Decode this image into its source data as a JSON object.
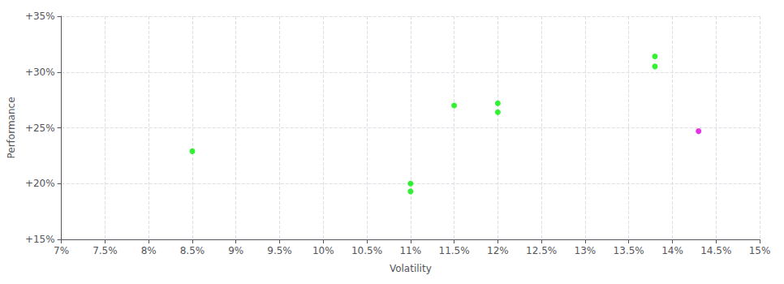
{
  "chart_data": {
    "type": "scatter",
    "xlabel": "Volatility",
    "ylabel": "Performance",
    "xlim": [
      0.07,
      0.15
    ],
    "ylim": [
      0.15,
      0.35
    ],
    "xticks": [
      {
        "value": 0.07,
        "label": "7%"
      },
      {
        "value": 0.075,
        "label": "7.5%"
      },
      {
        "value": 0.08,
        "label": "8%"
      },
      {
        "value": 0.085,
        "label": "8.5%"
      },
      {
        "value": 0.09,
        "label": "9%"
      },
      {
        "value": 0.095,
        "label": "9.5%"
      },
      {
        "value": 0.1,
        "label": "10%"
      },
      {
        "value": 0.105,
        "label": "10.5%"
      },
      {
        "value": 0.11,
        "label": "11%"
      },
      {
        "value": 0.115,
        "label": "11.5%"
      },
      {
        "value": 0.12,
        "label": "12%"
      },
      {
        "value": 0.125,
        "label": "12.5%"
      },
      {
        "value": 0.13,
        "label": "13%"
      },
      {
        "value": 0.135,
        "label": "13.5%"
      },
      {
        "value": 0.14,
        "label": "14%"
      },
      {
        "value": 0.145,
        "label": "14.5%"
      },
      {
        "value": 0.15,
        "label": "15%"
      }
    ],
    "yticks": [
      {
        "value": 0.15,
        "label": "+15%"
      },
      {
        "value": 0.2,
        "label": "+20%"
      },
      {
        "value": 0.25,
        "label": "+25%"
      },
      {
        "value": 0.3,
        "label": "+30%"
      },
      {
        "value": 0.35,
        "label": "+35%"
      }
    ],
    "grid": true,
    "series": [
      {
        "color": "#00ee00",
        "x": [
          0.085,
          0.11,
          0.11,
          0.115,
          0.12,
          0.12,
          0.138,
          0.138
        ],
        "values": [
          0.229,
          0.2,
          0.193,
          0.27,
          0.272,
          0.264,
          0.314,
          0.305
        ]
      },
      {
        "color": "#dd00dd",
        "x": [
          0.143
        ],
        "values": [
          0.247
        ]
      }
    ]
  }
}
